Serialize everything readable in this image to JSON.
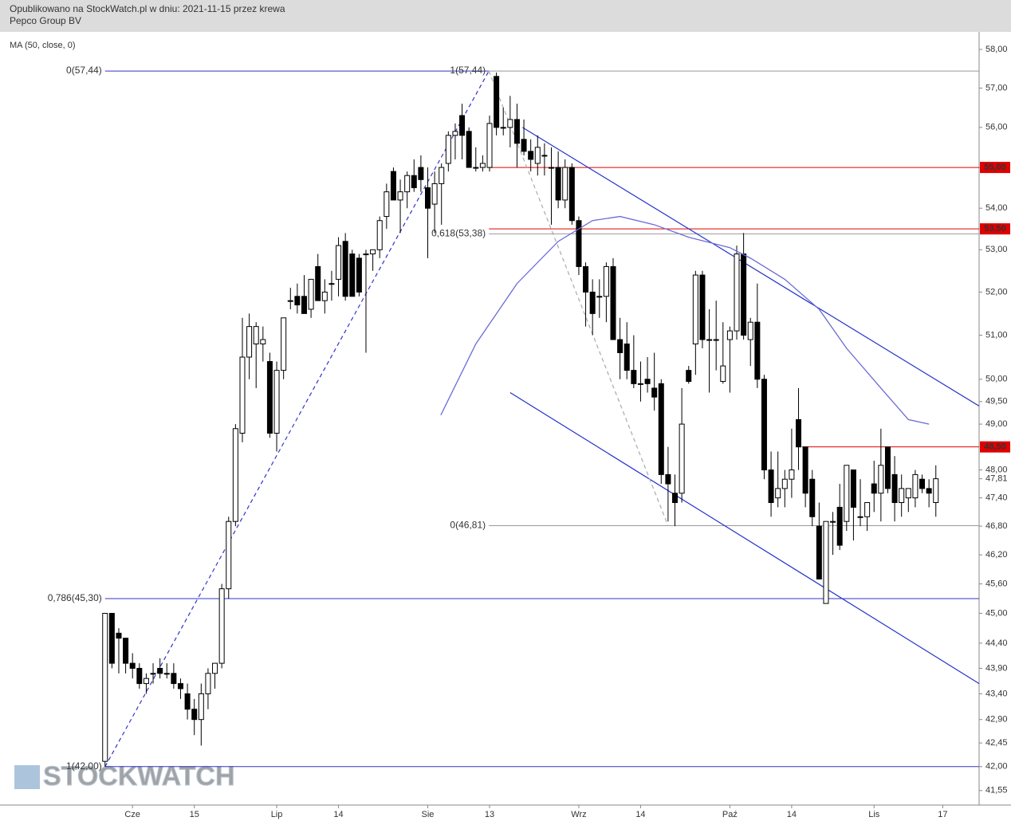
{
  "header": {
    "line1": "Opublikowano na StockWatch.pl w dniu: 2021-11-15 przez krewa",
    "line2": "Pepco Group BV"
  },
  "watermark": "STOCKWATCH",
  "chart_data": {
    "type": "candlestick",
    "log_scale": true,
    "ylim": [
      41.28,
      58.46
    ],
    "xlim": [
      -15.3,
      127.3
    ],
    "yticks": [
      {
        "value": 58,
        "label": "58,00"
      },
      {
        "value": 57,
        "label": "57,00"
      },
      {
        "value": 56,
        "label": "56,00"
      },
      {
        "value": 55,
        "label": "55,00"
      },
      {
        "value": 54,
        "label": "54,00"
      },
      {
        "value": 53,
        "label": "53,00"
      },
      {
        "value": 52,
        "label": "52,00"
      },
      {
        "value": 51,
        "label": "51,00"
      },
      {
        "value": 50,
        "label": "50,00"
      },
      {
        "value": 49.5,
        "label": "49,50"
      },
      {
        "value": 49,
        "label": "49,00"
      },
      {
        "value": 48,
        "label": "48,00"
      },
      {
        "value": 47.4,
        "label": "47,40"
      },
      {
        "value": 46.8,
        "label": "46,80"
      },
      {
        "value": 46.2,
        "label": "46,20"
      },
      {
        "value": 45.6,
        "label": "45,60"
      },
      {
        "value": 45,
        "label": "45,00"
      },
      {
        "value": 44.4,
        "label": "44,40"
      },
      {
        "value": 43.9,
        "label": "43,90"
      },
      {
        "value": 43.4,
        "label": "43,40"
      },
      {
        "value": 42.9,
        "label": "42,90"
      },
      {
        "value": 42.45,
        "label": "42,45"
      },
      {
        "value": 42,
        "label": "42,00"
      },
      {
        "value": 41.55,
        "label": "41,55"
      }
    ],
    "xticks": [
      {
        "value": 4,
        "label": "Cze"
      },
      {
        "value": 13,
        "label": "15"
      },
      {
        "value": 25,
        "label": "Lip"
      },
      {
        "value": 34,
        "label": "14"
      },
      {
        "value": 47,
        "label": "Sie"
      },
      {
        "value": 56,
        "label": "13"
      },
      {
        "value": 69,
        "label": "Wrz"
      },
      {
        "value": 78,
        "label": "14"
      },
      {
        "value": 91,
        "label": "Paź"
      },
      {
        "value": 100,
        "label": "14"
      },
      {
        "value": 112,
        "label": "Lis"
      },
      {
        "value": 122,
        "label": "17"
      }
    ],
    "open": [
      42.1,
      45.0,
      44.6,
      44.5,
      44.0,
      43.9,
      43.6,
      43.8,
      43.9,
      43.8,
      43.8,
      43.6,
      43.4,
      43.1,
      42.9,
      43.4,
      43.8,
      44.0,
      45.5,
      46.9,
      48.8,
      50.5,
      50.8,
      50.8,
      50.4,
      48.8,
      50.2,
      51.8,
      51.9,
      51.9,
      51.6,
      52.6,
      51.8,
      52.2,
      52.3,
      53.2,
      52.9,
      52.8,
      52.9,
      52.9,
      53.0,
      53.8,
      54.9,
      54.2,
      54.4,
      54.8,
      55.0,
      54.5,
      54.1,
      54.6,
      55.1,
      55.8,
      56.3,
      55.9,
      55.0,
      55.0,
      55.0,
      57.3,
      56.0,
      56.0,
      56.2,
      55.7,
      55.4,
      55.1,
      55.3,
      55.0,
      55.0,
      54.2,
      55.0,
      53.7,
      52.6,
      52.0,
      51.9,
      51.9,
      52.6,
      50.9,
      50.8,
      50.2,
      49.9,
      50.0,
      49.8,
      49.9,
      47.9,
      47.5,
      47.5,
      50.2,
      50.8,
      52.4,
      50.9,
      50.9,
      49.95,
      50.9,
      51.1,
      52.9,
      50.9,
      51.3,
      50.0,
      48.0,
      47.4,
      47.6,
      47.8,
      49.1,
      48.5,
      47.8,
      46.8,
      45.2,
      46.9,
      47.2,
      46.9,
      48.0,
      47.0,
      47.0,
      47.7,
      47.5,
      48.5,
      47.9,
      47.3,
      47.4,
      47.4,
      47.8,
      47.6,
      47.3
    ],
    "high": [
      45.0,
      45.0,
      44.7,
      44.5,
      44.2,
      44.0,
      43.8,
      44.0,
      44.1,
      44.0,
      44.0,
      43.7,
      43.6,
      43.3,
      43.6,
      43.9,
      44.0,
      45.6,
      47.0,
      49.0,
      51.4,
      51.5,
      51.3,
      51.2,
      50.6,
      50.4,
      51.4,
      52.1,
      52.2,
      52.4,
      52.3,
      52.9,
      52.3,
      52.5,
      53.3,
      53.4,
      53.0,
      52.9,
      53.0,
      53.0,
      53.8,
      54.6,
      55.0,
      54.7,
      54.9,
      55.2,
      55.3,
      55.0,
      54.9,
      55.1,
      55.9,
      56.1,
      56.6,
      56.0,
      55.5,
      55.3,
      56.3,
      57.4,
      56.5,
      56.8,
      56.6,
      56.2,
      55.7,
      55.8,
      55.6,
      55.5,
      55.4,
      55.2,
      55.1,
      53.8,
      52.7,
      52.3,
      52.3,
      52.7,
      52.8,
      51.4,
      51.3,
      51.0,
      50.4,
      50.5,
      50.6,
      50.0,
      48.5,
      47.9,
      49.8,
      50.3,
      52.5,
      52.5,
      51.6,
      51.8,
      51.3,
      51.2,
      53.1,
      53.4,
      51.4,
      52.2,
      50.1,
      48.4,
      48.4,
      48.0,
      48.9,
      49.8,
      48.5,
      48.0,
      47.3,
      46.9,
      47.1,
      47.7,
      48.1,
      48.0,
      47.8,
      47.3,
      48.2,
      48.9,
      48.5,
      48.3,
      47.9,
      47.6,
      48.0,
      47.9,
      47.8,
      48.1
    ],
    "low": [
      42.0,
      43.9,
      43.8,
      43.8,
      43.7,
      43.5,
      43.4,
      43.6,
      43.7,
      43.7,
      43.5,
      43.3,
      42.9,
      42.6,
      42.4,
      43.1,
      43.5,
      43.9,
      45.3,
      46.8,
      48.6,
      50.0,
      49.8,
      50.4,
      48.7,
      48.4,
      50.0,
      51.6,
      51.5,
      51.5,
      51.4,
      51.8,
      51.5,
      51.8,
      51.9,
      51.8,
      51.9,
      51.9,
      50.6,
      52.5,
      52.8,
      53.5,
      54.2,
      53.4,
      54.0,
      54.4,
      54.4,
      52.8,
      53.4,
      53.6,
      54.9,
      55.2,
      55.2,
      55.0,
      54.9,
      54.9,
      54.9,
      55.8,
      55.8,
      55.5,
      55.0,
      55.3,
      54.9,
      54.8,
      54.8,
      53.6,
      54.0,
      54.0,
      53.6,
      52.4,
      51.2,
      51.0,
      51.4,
      51.3,
      50.9,
      50.0,
      50.0,
      49.8,
      49.5,
      49.7,
      49.3,
      47.7,
      46.9,
      46.8,
      47.3,
      49.9,
      50.1,
      50.7,
      49.7,
      50.2,
      49.9,
      49.7,
      50.9,
      50.9,
      50.3,
      49.8,
      47.8,
      47.0,
      47.2,
      47.2,
      47.4,
      48.0,
      47.2,
      46.8,
      45.7,
      45.2,
      46.2,
      46.3,
      46.7,
      46.5,
      46.8,
      46.7,
      47.1,
      46.9,
      47.5,
      46.9,
      47.0,
      47.1,
      47.2,
      47.5,
      47.2,
      47.0
    ],
    "close": [
      45.0,
      44.0,
      44.5,
      44.0,
      43.9,
      43.6,
      43.7,
      43.8,
      43.8,
      43.8,
      43.6,
      43.5,
      43.1,
      42.9,
      43.4,
      43.8,
      44.0,
      45.5,
      46.9,
      48.9,
      50.5,
      51.2,
      51.2,
      50.9,
      48.8,
      50.2,
      51.4,
      51.8,
      51.7,
      51.5,
      52.3,
      51.8,
      52.0,
      52.2,
      53.1,
      51.9,
      51.9,
      52.0,
      52.9,
      53.0,
      53.7,
      54.4,
      54.2,
      54.4,
      54.8,
      54.5,
      54.7,
      54.0,
      54.6,
      55.0,
      55.8,
      55.9,
      55.8,
      55.0,
      55.0,
      55.1,
      56.1,
      56.0,
      56.0,
      56.2,
      55.6,
      55.4,
      55.2,
      55.5,
      55.3,
      55.0,
      54.2,
      55.0,
      53.7,
      52.6,
      52.0,
      51.5,
      51.9,
      52.6,
      50.9,
      50.6,
      50.2,
      49.9,
      49.9,
      49.9,
      49.6,
      47.9,
      47.7,
      47.3,
      49.0,
      49.95,
      52.4,
      50.9,
      50.9,
      50.9,
      50.3,
      51.1,
      52.9,
      51.0,
      51.3,
      50.0,
      48.0,
      47.3,
      47.6,
      47.8,
      48.0,
      48.5,
      47.5,
      47.0,
      45.7,
      46.9,
      46.9,
      46.4,
      48.1,
      47.2,
      47.0,
      47.3,
      47.5,
      48.1,
      47.6,
      47.3,
      47.6,
      47.6,
      47.9,
      47.6,
      47.5,
      47.81
    ],
    "ma": {
      "name": "MA (50, close, 0)",
      "color": "#6b6bd6",
      "x": [
        48.9,
        54,
        60,
        66,
        71,
        75,
        80,
        85,
        91,
        94,
        99,
        104,
        108,
        113,
        117,
        120
      ],
      "values": [
        49.2,
        50.8,
        52.2,
        53.2,
        53.7,
        53.8,
        53.6,
        53.3,
        53.05,
        52.8,
        52.3,
        51.6,
        50.7,
        49.8,
        49.1,
        49.0
      ]
    },
    "hlines": [
      {
        "value": 57.44,
        "label": "0(57,44)",
        "color": "#3333cc",
        "x": [
          0,
          55.9
        ]
      },
      {
        "value": 57.44,
        "label": "1(57,44)",
        "color": "#999999",
        "x": [
          55.9,
          127.3
        ]
      },
      {
        "value": 53.38,
        "label": "0,618(53,38)",
        "color": "#999999",
        "x": [
          55.9,
          127.3
        ]
      },
      {
        "value": 46.81,
        "label": "0(46,81)",
        "color": "#999999",
        "x": [
          55.9,
          127.3
        ]
      },
      {
        "value": 45.3,
        "label": "0,786(45,30)",
        "color": "#3333cc",
        "x": [
          0,
          127.3
        ]
      },
      {
        "value": 42.0,
        "label": "1(42,00)",
        "color": "#3333cc",
        "x": [
          0,
          127.3
        ]
      },
      {
        "value": 55.0,
        "axis_label": "55,00",
        "color": "#e00000",
        "x": [
          55.9,
          127.3
        ]
      },
      {
        "value": 53.5,
        "axis_label": "53,50",
        "color": "#e00000",
        "x": [
          55.9,
          127.3
        ]
      },
      {
        "value": 48.5,
        "axis_label": "48,50",
        "color": "#e00000",
        "x": [
          101.5,
          127.3
        ]
      }
    ],
    "trendlines": [
      {
        "color": "#2233cc",
        "x": [
          60.8,
          127.3
        ],
        "values": [
          56.0,
          49.4
        ],
        "dashed": false
      },
      {
        "color": "#2233cc",
        "x": [
          59.0,
          127.3
        ],
        "values": [
          49.7,
          43.6
        ],
        "dashed": false
      },
      {
        "color": "#3333cc",
        "x": [
          0,
          55.9
        ],
        "values": [
          42.0,
          57.44
        ],
        "dashed": true
      },
      {
        "color": "#aaaaaa",
        "x": [
          55.9,
          82.0
        ],
        "values": [
          57.44,
          46.81
        ],
        "dashed": true
      }
    ],
    "last_price": {
      "value": 47.81,
      "label": "47,81"
    }
  }
}
